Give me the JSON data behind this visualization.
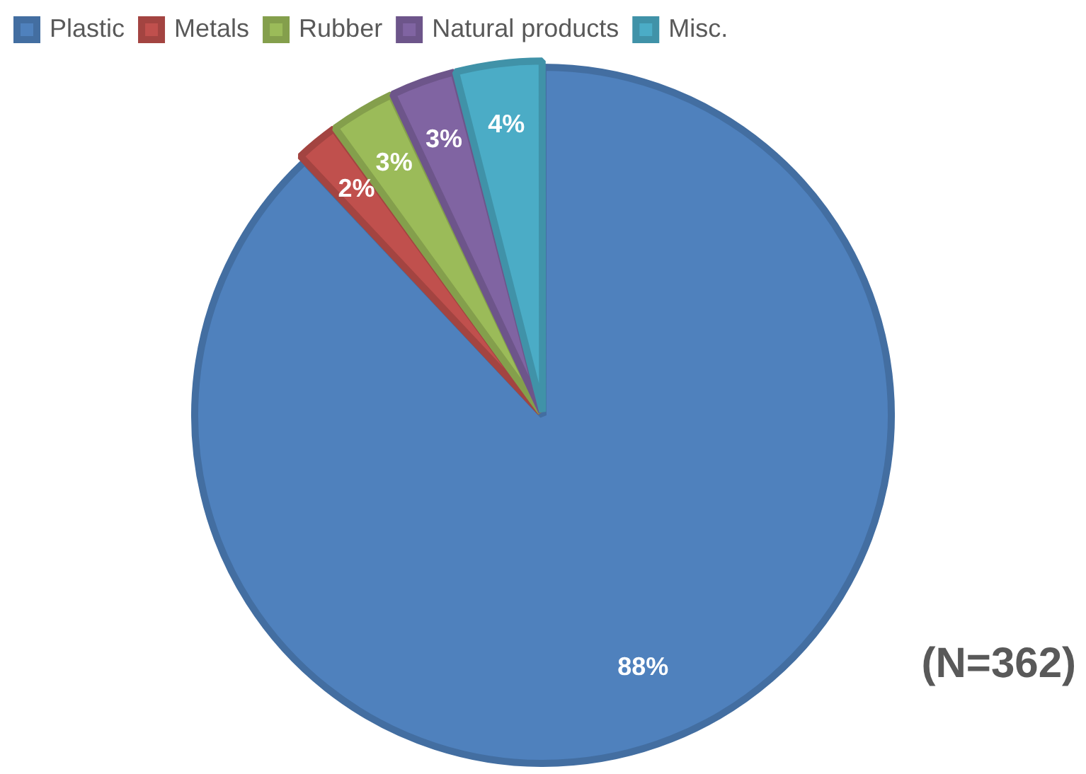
{
  "chart_data": {
    "type": "pie",
    "categories": [
      "Plastic",
      "Metals",
      "Rubber",
      "Natural products",
      "Misc."
    ],
    "values": [
      88,
      2,
      3,
      3,
      4
    ],
    "colors": [
      "#4f81bd",
      "#c0504d",
      "#9bbb59",
      "#8064a2",
      "#4bacc6"
    ],
    "value_labels": [
      "88%",
      "2%",
      "3%",
      "3%",
      "4%"
    ],
    "legend": "top left",
    "annotations": [
      "(N=362)"
    ]
  }
}
